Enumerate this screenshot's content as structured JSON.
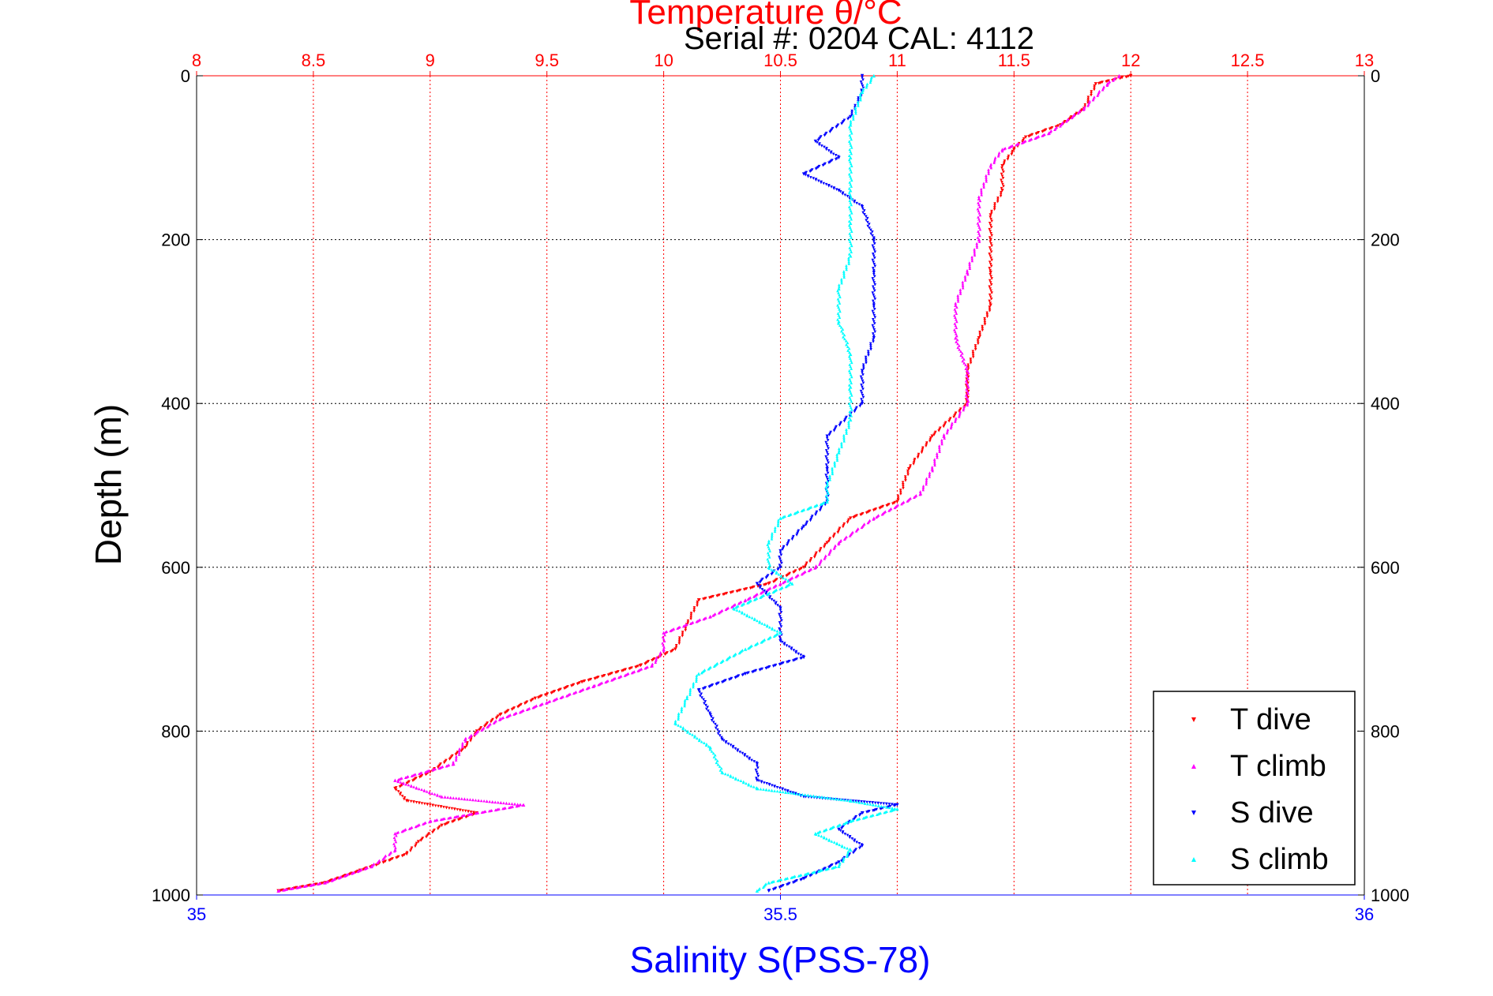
{
  "chart_data": {
    "type": "scatter",
    "title": "Temperature θ/°C",
    "subtitle": "Serial #: 0204  CAL: 4112",
    "ylabel": "Depth (m)",
    "xlabel_bottom": "Salinity S(PSS-78)",
    "y_axis": {
      "ylim": [
        0,
        1000
      ],
      "reversed": true,
      "ticks": [
        "0",
        "200",
        "400",
        "600",
        "800",
        "1000"
      ],
      "tick_values": [
        0,
        200,
        400,
        600,
        800,
        1000
      ]
    },
    "x_top": {
      "label": "Temperature θ/°C",
      "xlim": [
        8,
        13
      ],
      "ticks": [
        "8",
        "8.5",
        "9",
        "9.5",
        "10",
        "10.5",
        "11",
        "11.5",
        "12",
        "12.5",
        "13"
      ],
      "tick_values": [
        8,
        8.5,
        9,
        9.5,
        10,
        10.5,
        11,
        11.5,
        12,
        12.5,
        13
      ],
      "color": "#ff0000"
    },
    "x_bottom": {
      "label": "Salinity S(PSS-78)",
      "xlim": [
        35,
        36
      ],
      "ticks": [
        "35",
        "35.5",
        "36"
      ],
      "tick_values": [
        35,
        35.5,
        36
      ],
      "color": "#0000ff"
    },
    "grid": true,
    "legend_placement": "bottom-right",
    "series": [
      {
        "name": "T dive",
        "axis": "temperature",
        "color": "#ff0000",
        "marker": "triangle-down",
        "points": [
          [
            12.0,
            0
          ],
          [
            11.85,
            10
          ],
          [
            11.8,
            40
          ],
          [
            11.7,
            60
          ],
          [
            11.55,
            75
          ],
          [
            11.5,
            90
          ],
          [
            11.45,
            110
          ],
          [
            11.45,
            140
          ],
          [
            11.4,
            170
          ],
          [
            11.4,
            200
          ],
          [
            11.4,
            240
          ],
          [
            11.4,
            280
          ],
          [
            11.35,
            320
          ],
          [
            11.3,
            360
          ],
          [
            11.3,
            400
          ],
          [
            11.15,
            440
          ],
          [
            11.05,
            480
          ],
          [
            11.0,
            520
          ],
          [
            10.8,
            540
          ],
          [
            10.7,
            570
          ],
          [
            10.6,
            600
          ],
          [
            10.45,
            620
          ],
          [
            10.15,
            640
          ],
          [
            10.1,
            670
          ],
          [
            10.05,
            700
          ],
          [
            9.9,
            720
          ],
          [
            9.65,
            740
          ],
          [
            9.45,
            760
          ],
          [
            9.3,
            780
          ],
          [
            9.2,
            800
          ],
          [
            9.15,
            820
          ],
          [
            9.0,
            850
          ],
          [
            8.85,
            870
          ],
          [
            8.9,
            885
          ],
          [
            9.2,
            900
          ],
          [
            9.05,
            915
          ],
          [
            8.95,
            935
          ],
          [
            8.9,
            950
          ],
          [
            8.7,
            970
          ],
          [
            8.55,
            985
          ],
          [
            8.35,
            995
          ]
        ]
      },
      {
        "name": "T climb",
        "axis": "temperature",
        "color": "#ff00ff",
        "marker": "triangle-up",
        "points": [
          [
            11.95,
            0
          ],
          [
            11.9,
            10
          ],
          [
            11.8,
            40
          ],
          [
            11.65,
            70
          ],
          [
            11.45,
            90
          ],
          [
            11.4,
            110
          ],
          [
            11.35,
            150
          ],
          [
            11.35,
            200
          ],
          [
            11.3,
            240
          ],
          [
            11.25,
            280
          ],
          [
            11.25,
            320
          ],
          [
            11.3,
            360
          ],
          [
            11.3,
            400
          ],
          [
            11.2,
            440
          ],
          [
            11.15,
            480
          ],
          [
            11.1,
            510
          ],
          [
            10.9,
            540
          ],
          [
            10.75,
            570
          ],
          [
            10.65,
            600
          ],
          [
            10.5,
            620
          ],
          [
            10.35,
            640
          ],
          [
            10.2,
            660
          ],
          [
            10.0,
            680
          ],
          [
            10.0,
            700
          ],
          [
            9.95,
            720
          ],
          [
            9.7,
            745
          ],
          [
            9.5,
            765
          ],
          [
            9.3,
            785
          ],
          [
            9.15,
            810
          ],
          [
            9.1,
            840
          ],
          [
            8.85,
            860
          ],
          [
            9.05,
            880
          ],
          [
            9.4,
            890
          ],
          [
            9.0,
            910
          ],
          [
            8.85,
            925
          ],
          [
            8.85,
            945
          ],
          [
            8.75,
            965
          ],
          [
            8.55,
            985
          ],
          [
            8.35,
            995
          ]
        ]
      },
      {
        "name": "S dive",
        "axis": "salinity",
        "color": "#0000ff",
        "marker": "triangle-down",
        "points": [
          [
            35.57,
            0
          ],
          [
            35.57,
            20
          ],
          [
            35.56,
            50
          ],
          [
            35.53,
            80
          ],
          [
            35.55,
            100
          ],
          [
            35.52,
            120
          ],
          [
            35.55,
            140
          ],
          [
            35.57,
            160
          ],
          [
            35.58,
            200
          ],
          [
            35.58,
            240
          ],
          [
            35.58,
            280
          ],
          [
            35.58,
            320
          ],
          [
            35.57,
            360
          ],
          [
            35.57,
            400
          ],
          [
            35.54,
            440
          ],
          [
            35.54,
            480
          ],
          [
            35.54,
            520
          ],
          [
            35.52,
            550
          ],
          [
            35.5,
            580
          ],
          [
            35.5,
            600
          ],
          [
            35.48,
            620
          ],
          [
            35.5,
            650
          ],
          [
            35.5,
            690
          ],
          [
            35.52,
            710
          ],
          [
            35.47,
            730
          ],
          [
            35.43,
            750
          ],
          [
            35.44,
            780
          ],
          [
            35.45,
            810
          ],
          [
            35.48,
            840
          ],
          [
            35.48,
            860
          ],
          [
            35.52,
            880
          ],
          [
            35.6,
            890
          ],
          [
            35.57,
            900
          ],
          [
            35.55,
            920
          ],
          [
            35.57,
            940
          ],
          [
            35.55,
            960
          ],
          [
            35.52,
            980
          ],
          [
            35.49,
            995
          ]
        ]
      },
      {
        "name": "S climb",
        "axis": "salinity",
        "color": "#00ffff",
        "marker": "triangle-up",
        "points": [
          [
            35.58,
            0
          ],
          [
            35.57,
            20
          ],
          [
            35.56,
            60
          ],
          [
            35.56,
            100
          ],
          [
            35.56,
            140
          ],
          [
            35.56,
            180
          ],
          [
            35.56,
            220
          ],
          [
            35.55,
            260
          ],
          [
            35.55,
            300
          ],
          [
            35.56,
            340
          ],
          [
            35.56,
            380
          ],
          [
            35.56,
            420
          ],
          [
            35.55,
            460
          ],
          [
            35.54,
            500
          ],
          [
            35.54,
            520
          ],
          [
            35.5,
            540
          ],
          [
            35.49,
            570
          ],
          [
            35.49,
            600
          ],
          [
            35.51,
            620
          ],
          [
            35.46,
            650
          ],
          [
            35.5,
            680
          ],
          [
            35.47,
            700
          ],
          [
            35.43,
            730
          ],
          [
            35.42,
            760
          ],
          [
            35.41,
            790
          ],
          [
            35.44,
            820
          ],
          [
            35.45,
            850
          ],
          [
            35.48,
            870
          ],
          [
            35.56,
            885
          ],
          [
            35.6,
            895
          ],
          [
            35.56,
            910
          ],
          [
            35.53,
            925
          ],
          [
            35.56,
            945
          ],
          [
            35.55,
            965
          ],
          [
            35.49,
            985
          ],
          [
            35.48,
            995
          ]
        ]
      }
    ]
  }
}
